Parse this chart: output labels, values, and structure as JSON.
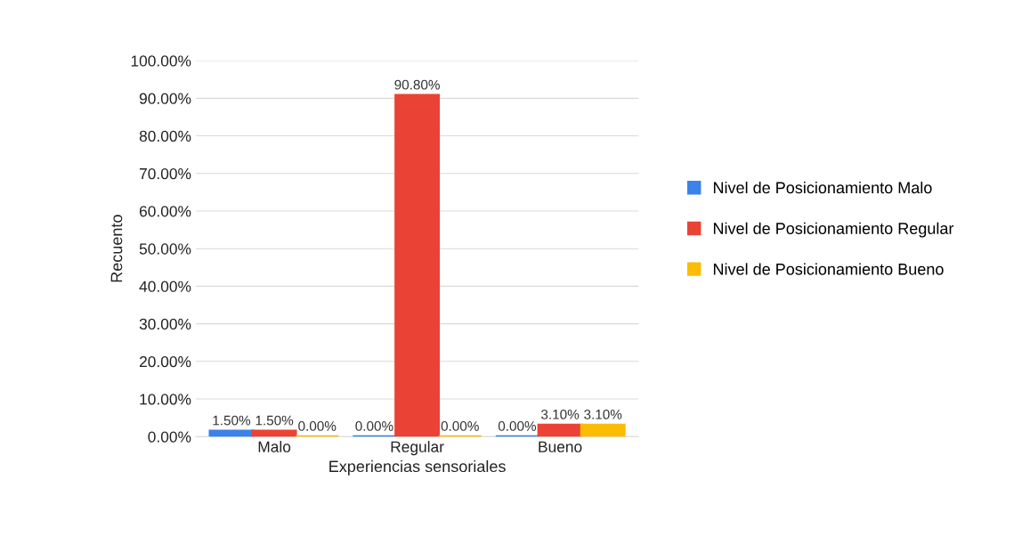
{
  "chart_data": {
    "type": "bar",
    "xlabel": "Experiencias sensoriales",
    "ylabel": "Recuento",
    "categories": [
      "Malo",
      "Regular",
      "Bueno"
    ],
    "series": [
      {
        "name": "Nivel de Posicionamiento Malo",
        "color": "#3c82e8",
        "values": [
          1.5,
          0.0,
          0.0
        ],
        "value_labels": [
          "1.50%",
          "0.00%",
          "0.00%"
        ]
      },
      {
        "name": "Nivel de Posicionamiento Regular",
        "color": "#ea4335",
        "values": [
          1.5,
          90.8,
          3.1
        ],
        "value_labels": [
          "1.50%",
          "90.80%",
          "3.10%"
        ]
      },
      {
        "name": "Nivel de Posicionamiento Bueno",
        "color": "#fbbc04",
        "values": [
          0.0,
          0.0,
          3.1
        ],
        "value_labels": [
          "0.00%",
          "0.00%",
          "3.10%"
        ]
      }
    ],
    "ylim": [
      0,
      100
    ],
    "yticks": [
      {
        "value": 0,
        "label": "0.00%"
      },
      {
        "value": 10,
        "label": "10.00%"
      },
      {
        "value": 20,
        "label": "20.00%"
      },
      {
        "value": 30,
        "label": "30.00%"
      },
      {
        "value": 40,
        "label": "40.00%"
      },
      {
        "value": 50,
        "label": "50.00%"
      },
      {
        "value": 60,
        "label": "60.00%"
      },
      {
        "value": 70,
        "label": "70.00%"
      },
      {
        "value": 80,
        "label": "80.00%"
      },
      {
        "value": 90,
        "label": "90.00%"
      },
      {
        "value": 100,
        "label": "100.00%"
      }
    ],
    "grid": "y",
    "legend": "right"
  }
}
